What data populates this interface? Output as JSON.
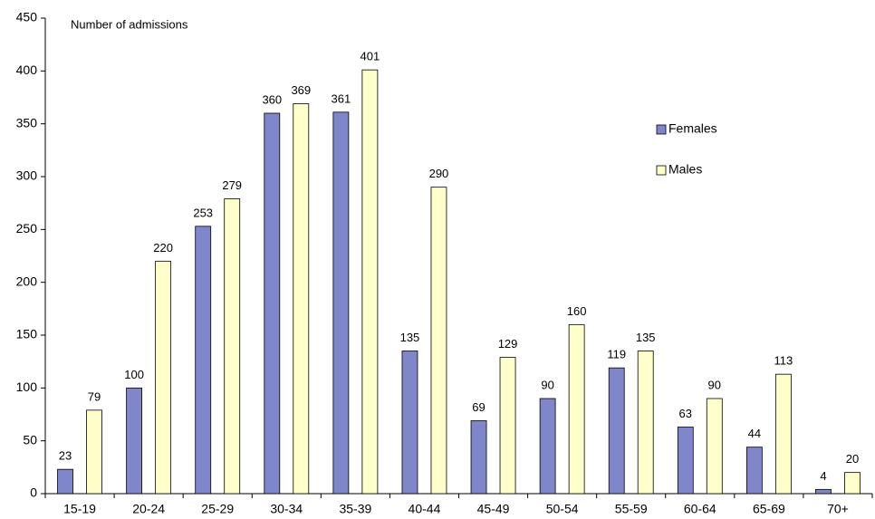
{
  "chart_data": {
    "type": "bar",
    "y_axis_label": "Number of admissions",
    "categories": [
      "15-19",
      "20-24",
      "25-29",
      "30-34",
      "35-39",
      "40-44",
      "45-49",
      "50-54",
      "55-59",
      "60-64",
      "65-69",
      "70+"
    ],
    "series": [
      {
        "name": "Females",
        "color": "#7f86c9",
        "values": [
          23,
          100,
          253,
          360,
          361,
          135,
          69,
          90,
          119,
          63,
          44,
          4
        ]
      },
      {
        "name": "Males",
        "color": "#ffffcc",
        "values": [
          79,
          220,
          279,
          369,
          401,
          290,
          129,
          160,
          135,
          90,
          113,
          20
        ]
      }
    ],
    "ylim": [
      0,
      450
    ],
    "yticks": [
      0,
      50,
      100,
      150,
      200,
      250,
      300,
      350,
      400,
      450
    ],
    "legend": "right",
    "grid": false
  }
}
